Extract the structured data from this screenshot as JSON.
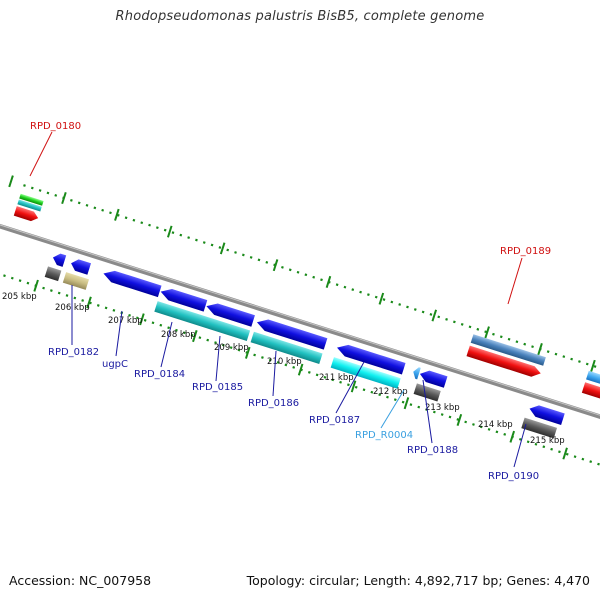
{
  "title": "Rhodopseudomonas palustris BisB5, complete genome",
  "footer": {
    "accession": "Accession: NC_007958",
    "summary": "Topology: circular; Length: 4,892,717 bp; Genes: 4,470"
  },
  "colors": {
    "backbone": "#8a8a8a",
    "ticks": "#1a8a1a",
    "cds_label": "#1a1aa0",
    "pseudo_label": "#d01010",
    "rna_label": "#3aa0e0"
  },
  "ticks": [
    {
      "label": "205 kbp"
    },
    {
      "label": "206 kbp"
    },
    {
      "label": "207 kbp"
    },
    {
      "label": "208 kbp"
    },
    {
      "label": "209 kbp"
    },
    {
      "label": "210 kbp"
    },
    {
      "label": "211 kbp"
    },
    {
      "label": "212 kbp"
    },
    {
      "label": "213 kbp"
    },
    {
      "label": "214 kbp"
    },
    {
      "label": "215 kbp"
    }
  ],
  "genes": [
    {
      "label": "RPD_0180",
      "kind": "pseudo"
    },
    {
      "label": "RPD_0182",
      "kind": "cds"
    },
    {
      "label": "ugpC",
      "kind": "cds"
    },
    {
      "label": "RPD_0184",
      "kind": "cds"
    },
    {
      "label": "RPD_0185",
      "kind": "cds"
    },
    {
      "label": "RPD_0186",
      "kind": "cds"
    },
    {
      "label": "RPD_0187",
      "kind": "cds"
    },
    {
      "label": "RPD_R0004",
      "kind": "rna"
    },
    {
      "label": "RPD_0188",
      "kind": "cds"
    },
    {
      "label": "RPD_0189",
      "kind": "pseudo"
    },
    {
      "label": "RPD_0190",
      "kind": "cds"
    }
  ]
}
